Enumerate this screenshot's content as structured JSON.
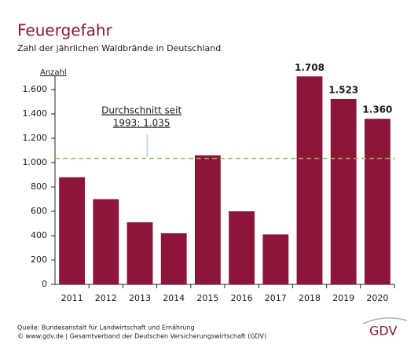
{
  "chart_data": {
    "type": "bar",
    "title": "Feuergefahr",
    "subtitle": "Zahl der jährlichen Waldbrände in Deutschland",
    "y_label": "Anzahl",
    "categories": [
      "2011",
      "2012",
      "2013",
      "2014",
      "2015",
      "2016",
      "2017",
      "2018",
      "2019",
      "2020"
    ],
    "values": [
      880,
      700,
      510,
      420,
      1060,
      600,
      410,
      1708,
      1523,
      1360
    ],
    "value_labels": [
      null,
      null,
      null,
      null,
      null,
      null,
      null,
      "1.708",
      "1.523",
      "1.360"
    ],
    "color": "#8c1539",
    "ylim": [
      0,
      1600
    ],
    "yticks": [
      0,
      200,
      400,
      600,
      800,
      {
        "value": 1000,
        "label": "1.000"
      },
      {
        "value": 1200,
        "label": "1.200"
      },
      {
        "value": 1400,
        "label": "1.400"
      },
      {
        "value": 1600,
        "label": "1.600"
      }
    ],
    "average": {
      "value": 1035,
      "color": "#8cc63f",
      "label_lines": [
        "Durchschnitt seit",
        "1993: 1.035"
      ]
    },
    "sources": [
      "Quelle: Bundesanstalt für Landwirtschaft und Ernährung",
      "© www.gdv.de | Gesamtverband der Deutschen Versicherungswirtschaft (GDV)"
    ],
    "logo": "GDV"
  }
}
